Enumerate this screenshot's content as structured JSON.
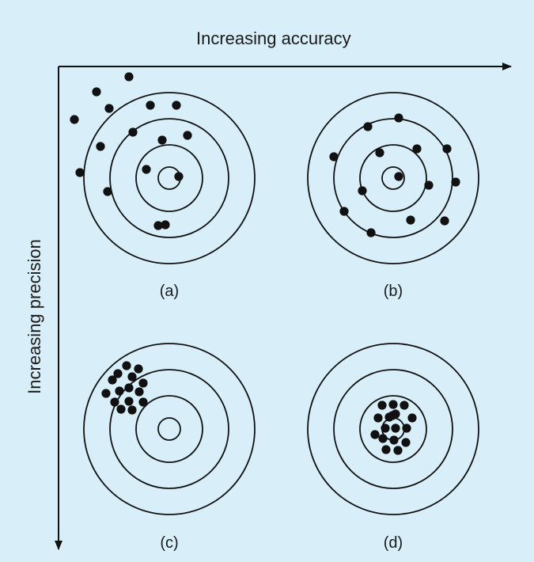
{
  "axes": {
    "x_label": "Increasing accuracy",
    "y_label": "Increasing precision"
  },
  "panels": [
    {
      "id": "a",
      "label": "(a)"
    },
    {
      "id": "b",
      "label": "(b)"
    },
    {
      "id": "c",
      "label": "(c)"
    },
    {
      "id": "d",
      "label": "(d)"
    }
  ],
  "colors": {
    "background": "#d8eff9",
    "ink": "#111111"
  }
}
